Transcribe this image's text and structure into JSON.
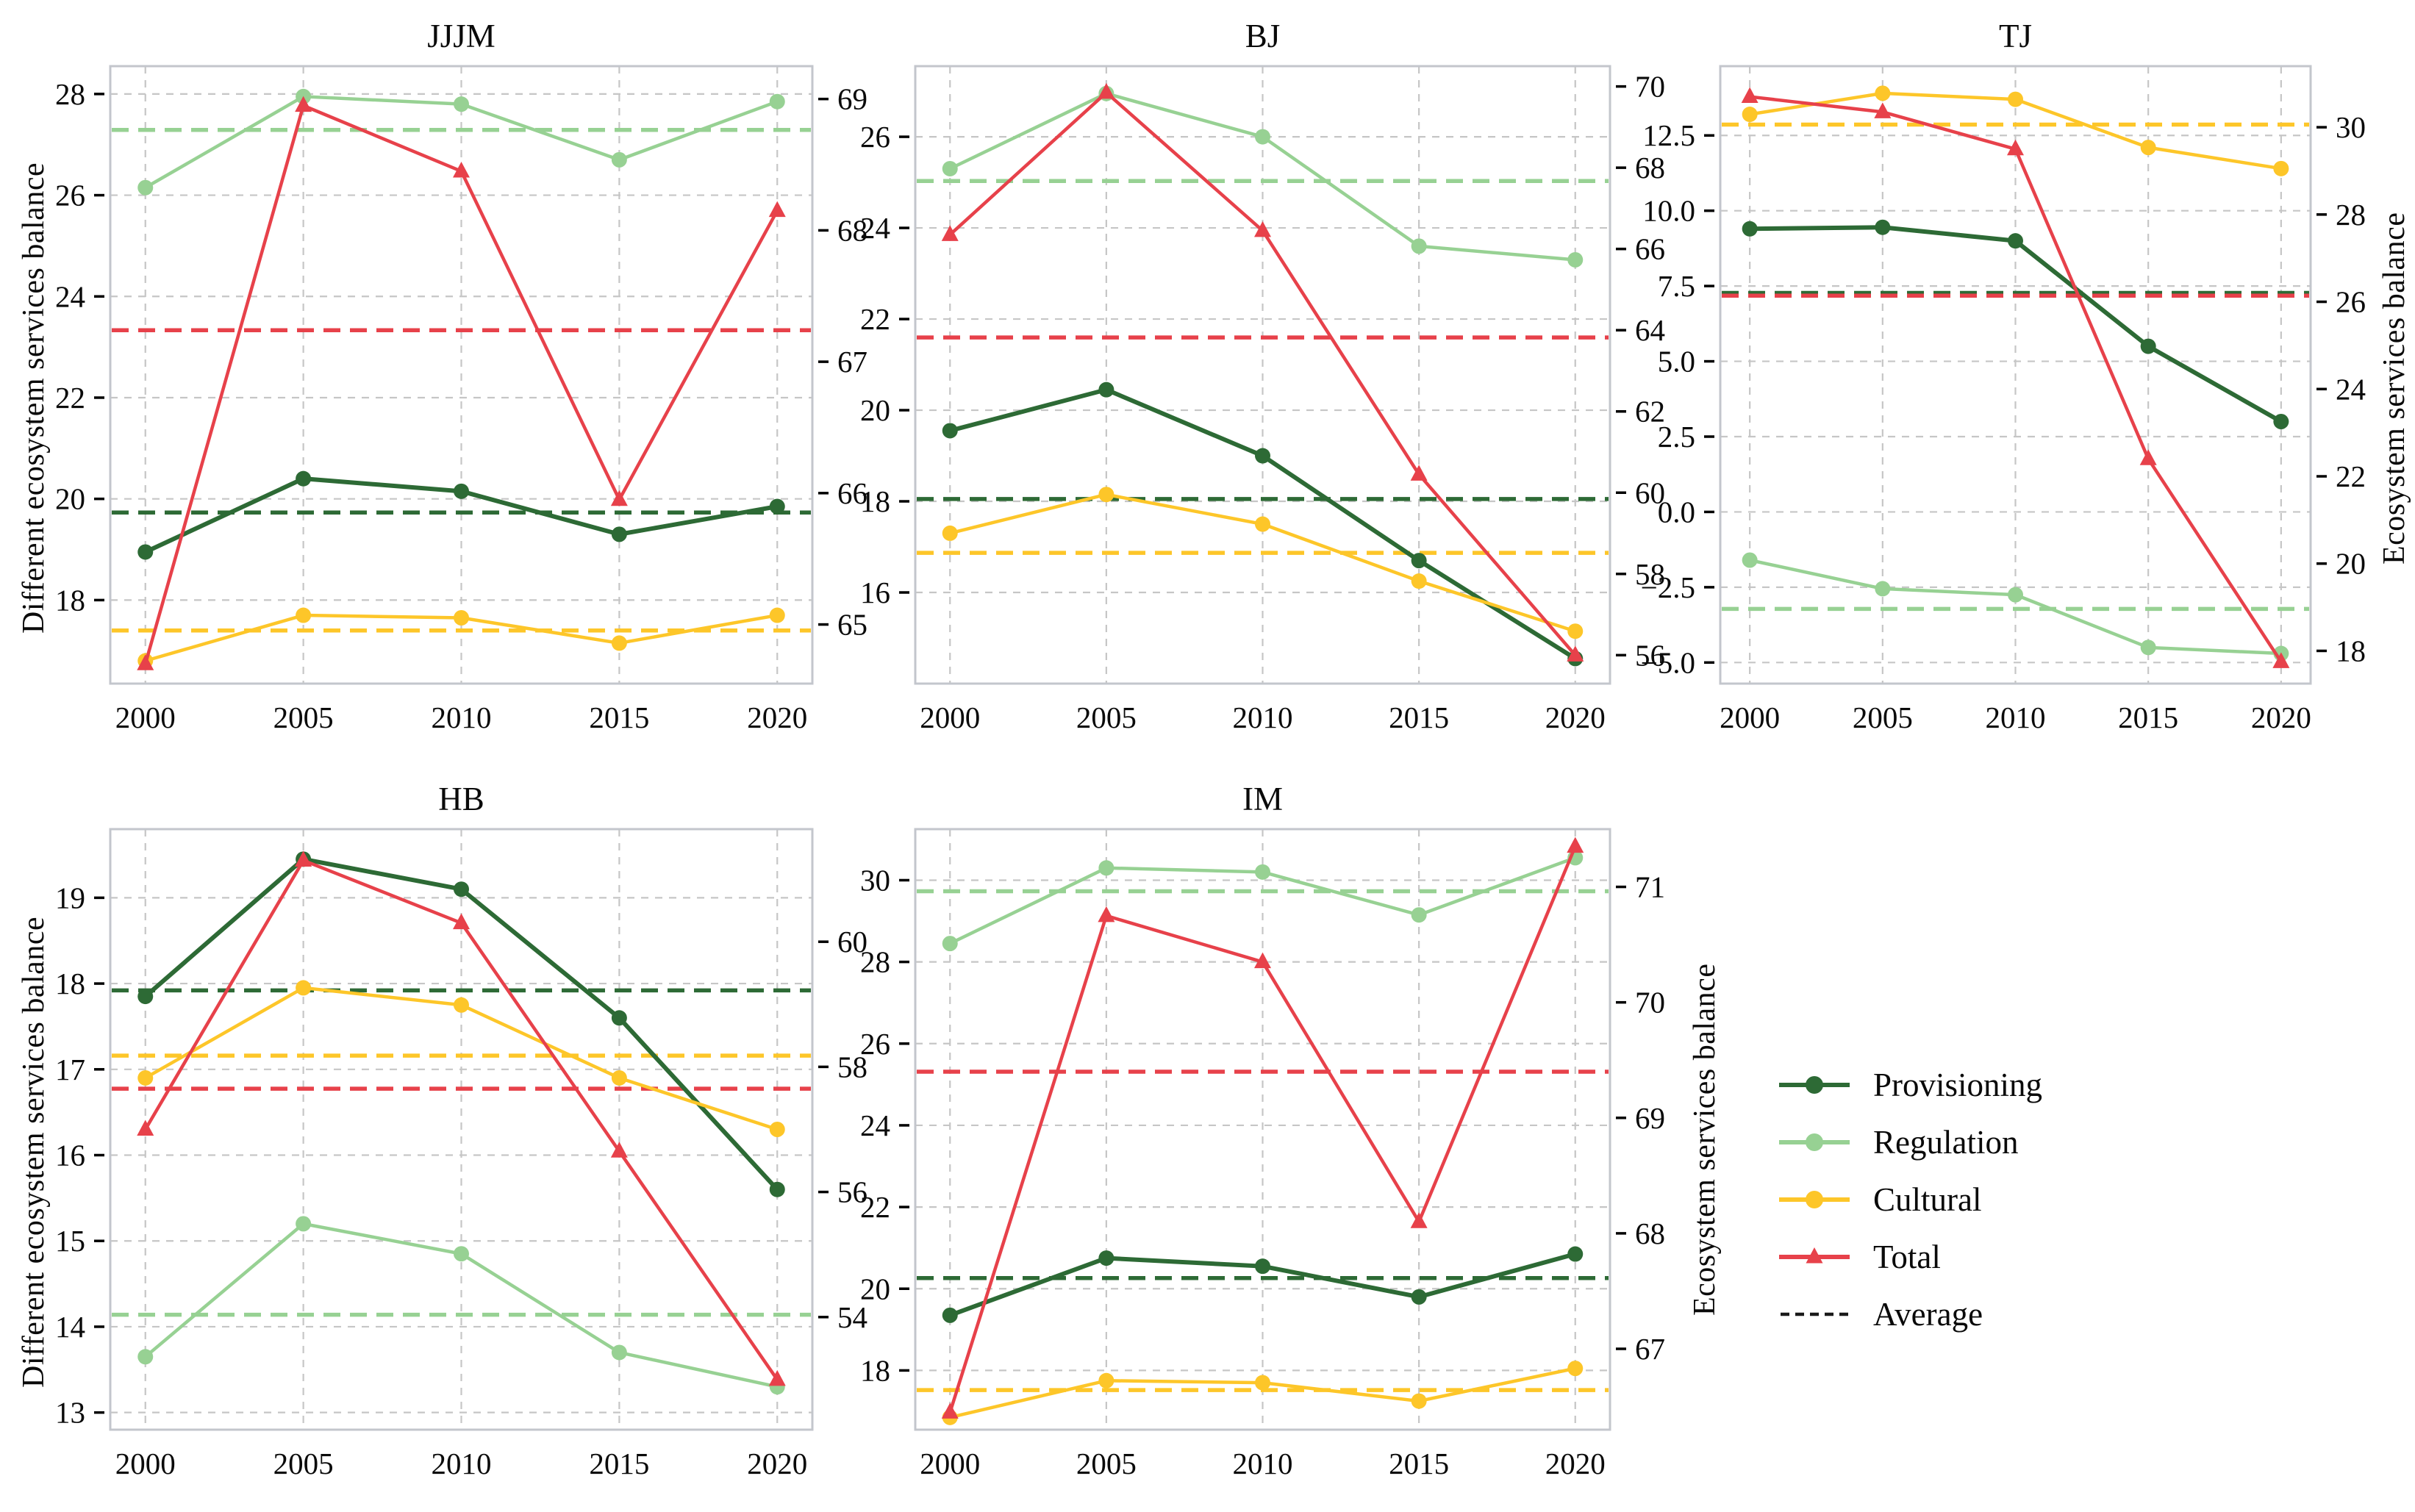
{
  "figure": {
    "ylabel_left": "Different ecosystem services balance",
    "ylabel_right": "Ecosystem services balance"
  },
  "colors": {
    "provisioning": "#2d6a35",
    "regulation": "#97d193",
    "cultural": "#fdc629",
    "total": "#e7414a",
    "grid": "#c6c6c6",
    "spine": "#c3c6cc",
    "text": "#0a0a0a"
  },
  "legend": {
    "items": [
      {
        "label": "Provisioning",
        "color": "#2d6a35",
        "marker": "circle",
        "dashed": false
      },
      {
        "label": "Regulation",
        "color": "#97d193",
        "marker": "circle",
        "dashed": false
      },
      {
        "label": "Cultural",
        "color": "#fdc629",
        "marker": "circle",
        "dashed": false
      },
      {
        "label": "Total",
        "color": "#e7414a",
        "marker": "triangle",
        "dashed": false
      },
      {
        "label": "Average",
        "color": "#1a1a1a",
        "marker": "none",
        "dashed": true
      }
    ]
  },
  "chart_data": [
    {
      "type": "line",
      "title": "JJJM",
      "x": [
        "2000",
        "2005",
        "2010",
        "2015",
        "2020"
      ],
      "grid": true,
      "left_axis": {
        "label": "Different ecosystem services balance",
        "tick_labels": [
          "18",
          "20",
          "22",
          "24",
          "26",
          "28"
        ],
        "tick_values": [
          18,
          20,
          22,
          24,
          26,
          28
        ],
        "range": [
          16.35,
          28.55
        ]
      },
      "right_axis": {
        "label": "",
        "tick_labels": [
          "65",
          "66",
          "67",
          "68",
          "69"
        ],
        "tick_values": [
          65,
          66,
          67,
          68,
          69
        ],
        "range": [
          64.55,
          69.25
        ]
      },
      "series": [
        {
          "name": "Provisioning",
          "axis": "left",
          "marker": "circle",
          "color": "#2d6a35",
          "values": [
            18.95,
            20.4,
            20.15,
            19.3,
            19.85
          ],
          "average": 19.73
        },
        {
          "name": "Regulation",
          "axis": "left",
          "marker": "circle",
          "color": "#97d193",
          "values": [
            26.15,
            27.95,
            27.8,
            26.7,
            27.85
          ],
          "average": 27.29
        },
        {
          "name": "Cultural",
          "axis": "left",
          "marker": "circle",
          "color": "#fdc629",
          "values": [
            16.8,
            17.7,
            17.65,
            17.15,
            17.7
          ],
          "average": 17.4
        },
        {
          "name": "Total",
          "axis": "right",
          "marker": "triangle",
          "color": "#e7414a",
          "values": [
            64.7,
            68.95,
            68.45,
            65.95,
            68.15
          ],
          "average": 67.24
        }
      ]
    },
    {
      "type": "line",
      "title": "BJ",
      "x": [
        "2000",
        "2005",
        "2010",
        "2015",
        "2020"
      ],
      "grid": true,
      "left_axis": {
        "label": "",
        "tick_labels": [
          "16",
          "18",
          "20",
          "22",
          "24",
          "26"
        ],
        "tick_values": [
          16,
          18,
          20,
          22,
          24,
          26
        ],
        "range": [
          14.0,
          27.55
        ]
      },
      "right_axis": {
        "label": "",
        "tick_labels": [
          "56",
          "58",
          "60",
          "62",
          "64",
          "66",
          "68",
          "70"
        ],
        "tick_values": [
          56,
          58,
          60,
          62,
          64,
          66,
          68,
          70
        ],
        "range": [
          55.3,
          70.5
        ]
      },
      "series": [
        {
          "name": "Provisioning",
          "axis": "left",
          "marker": "circle",
          "color": "#2d6a35",
          "values": [
            19.55,
            20.45,
            19.0,
            16.7,
            14.55
          ],
          "average": 18.05
        },
        {
          "name": "Regulation",
          "axis": "left",
          "marker": "circle",
          "color": "#97d193",
          "values": [
            25.3,
            26.95,
            26.0,
            23.6,
            23.3
          ],
          "average": 25.03
        },
        {
          "name": "Cultural",
          "axis": "left",
          "marker": "circle",
          "color": "#fdc629",
          "values": [
            17.3,
            18.15,
            17.5,
            16.25,
            15.15
          ],
          "average": 16.87
        },
        {
          "name": "Total",
          "axis": "right",
          "marker": "triangle",
          "color": "#e7414a",
          "values": [
            66.35,
            69.85,
            66.45,
            60.45,
            56.0
          ],
          "average": 63.82
        }
      ]
    },
    {
      "type": "line",
      "title": "TJ",
      "x": [
        "2000",
        "2005",
        "2010",
        "2015",
        "2020"
      ],
      "grid": true,
      "left_axis": {
        "label": "",
        "tick_labels": [
          "−5.0",
          "−2.5",
          "0.0",
          "2.5",
          "5.0",
          "7.5",
          "10.0",
          "12.5"
        ],
        "tick_values": [
          -5.0,
          -2.5,
          0.0,
          2.5,
          5.0,
          7.5,
          10.0,
          12.5
        ],
        "range": [
          -5.7,
          14.8
        ]
      },
      "right_axis": {
        "label": "Ecosystem services balance",
        "tick_labels": [
          "18",
          "20",
          "22",
          "24",
          "26",
          "28",
          "30"
        ],
        "tick_values": [
          18,
          20,
          22,
          24,
          26,
          28,
          30
        ],
        "range": [
          17.25,
          31.4
        ]
      },
      "series": [
        {
          "name": "Provisioning",
          "axis": "left",
          "marker": "circle",
          "color": "#2d6a35",
          "values": [
            9.4,
            9.45,
            9.0,
            5.5,
            3.0
          ],
          "average": 7.27
        },
        {
          "name": "Regulation",
          "axis": "left",
          "marker": "circle",
          "color": "#97d193",
          "values": [
            -1.6,
            -2.55,
            -2.75,
            -4.5,
            -4.7
          ],
          "average": -3.22
        },
        {
          "name": "Cultural",
          "axis": "left",
          "marker": "circle",
          "color": "#fdc629",
          "values": [
            13.2,
            13.9,
            13.7,
            12.1,
            11.4
          ],
          "average": 12.86
        },
        {
          "name": "Total",
          "axis": "right",
          "marker": "triangle",
          "color": "#e7414a",
          "values": [
            30.7,
            30.35,
            29.5,
            22.4,
            17.75
          ],
          "average": 26.14
        }
      ]
    },
    {
      "type": "line",
      "title": "HB",
      "x": [
        "2000",
        "2005",
        "2010",
        "2015",
        "2020"
      ],
      "grid": true,
      "left_axis": {
        "label": "Different ecosystem services balance",
        "tick_labels": [
          "13",
          "14",
          "15",
          "16",
          "17",
          "18",
          "19"
        ],
        "tick_values": [
          13,
          14,
          15,
          16,
          17,
          18,
          19
        ],
        "range": [
          12.8,
          19.8
        ]
      },
      "right_axis": {
        "label": "",
        "tick_labels": [
          "54",
          "56",
          "58",
          "60"
        ],
        "tick_values": [
          54,
          56,
          58,
          60
        ],
        "range": [
          52.2,
          61.8
        ]
      },
      "series": [
        {
          "name": "Provisioning",
          "axis": "left",
          "marker": "circle",
          "color": "#2d6a35",
          "values": [
            17.85,
            19.45,
            19.1,
            17.6,
            15.6
          ],
          "average": 17.92
        },
        {
          "name": "Regulation",
          "axis": "left",
          "marker": "circle",
          "color": "#97d193",
          "values": [
            13.65,
            15.2,
            14.85,
            13.7,
            13.3
          ],
          "average": 14.14
        },
        {
          "name": "Cultural",
          "axis": "left",
          "marker": "circle",
          "color": "#fdc629",
          "values": [
            16.9,
            17.95,
            17.75,
            16.9,
            16.3
          ],
          "average": 17.16
        },
        {
          "name": "Total",
          "axis": "right",
          "marker": "triangle",
          "color": "#e7414a",
          "values": [
            57.0,
            61.3,
            60.3,
            56.65,
            53.0
          ],
          "average": 57.65
        }
      ]
    },
    {
      "type": "line",
      "title": "IM",
      "x": [
        "2000",
        "2005",
        "2010",
        "2015",
        "2020"
      ],
      "grid": true,
      "left_axis": {
        "label": "",
        "tick_labels": [
          "18",
          "20",
          "22",
          "24",
          "26",
          "28",
          "30"
        ],
        "tick_values": [
          18,
          20,
          22,
          24,
          26,
          28,
          30
        ],
        "range": [
          16.55,
          31.25
        ]
      },
      "right_axis": {
        "label": "Ecosystem services balance",
        "tick_labels": [
          "67",
          "68",
          "69",
          "70",
          "71"
        ],
        "tick_values": [
          67,
          68,
          69,
          70,
          71
        ],
        "range": [
          66.3,
          71.5
        ]
      },
      "series": [
        {
          "name": "Provisioning",
          "axis": "left",
          "marker": "circle",
          "color": "#2d6a35",
          "values": [
            19.35,
            20.75,
            20.55,
            19.8,
            20.85
          ],
          "average": 20.26
        },
        {
          "name": "Regulation",
          "axis": "left",
          "marker": "circle",
          "color": "#97d193",
          "values": [
            28.45,
            30.3,
            30.2,
            29.15,
            30.55
          ],
          "average": 29.73
        },
        {
          "name": "Cultural",
          "axis": "left",
          "marker": "circle",
          "color": "#fdc629",
          "values": [
            16.85,
            17.75,
            17.7,
            17.25,
            18.05
          ],
          "average": 17.52
        },
        {
          "name": "Total",
          "axis": "right",
          "marker": "triangle",
          "color": "#e7414a",
          "values": [
            66.45,
            70.75,
            70.35,
            68.1,
            71.35
          ],
          "average": 69.4
        }
      ]
    }
  ]
}
